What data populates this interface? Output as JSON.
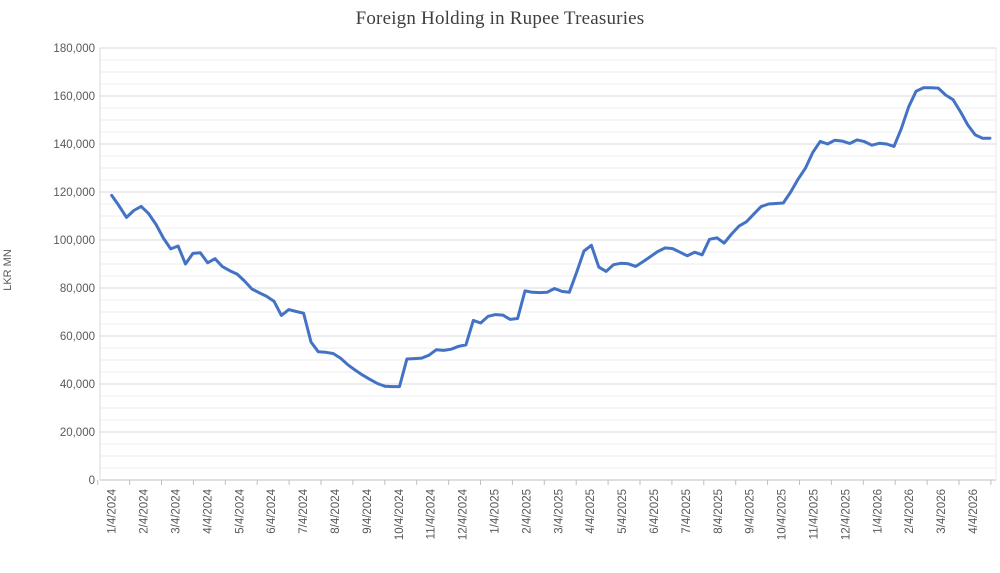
{
  "chart_data": {
    "type": "line",
    "title": "Foreign Holding in Rupee Treasuries",
    "ylabel": "LKR MN",
    "xlabel": "",
    "legend_position": "none",
    "grid": {
      "major_color": "#d9d9d9",
      "minor_color": "#ededed",
      "axis_color": "#bfbfbf",
      "tick_color": "#bfbfbf",
      "label_color": "#595959"
    },
    "y_axis": {
      "min": 0,
      "max": 180000,
      "major_step": 20000,
      "minor_step": 5000,
      "tick_labels": [
        "0",
        "20,000",
        "40,000",
        "60,000",
        "80,000",
        "100,000",
        "120,000",
        "140,000",
        "160,000",
        "180,000"
      ]
    },
    "x_axis": {
      "tick_labels": [
        "1/4/2024",
        "2/4/2024",
        "3/4/2024",
        "4/4/2024",
        "5/4/2024",
        "6/4/2024",
        "7/4/2024",
        "8/4/2024",
        "9/4/2024",
        "10/4/2024",
        "11/4/2024",
        "12/4/2024",
        "1/4/2025",
        "2/4/2025",
        "3/4/2025",
        "4/4/2025",
        "5/4/2025",
        "6/4/2025",
        "7/4/2025",
        "8/4/2025",
        "9/4/2025",
        "10/4/2025",
        "11/4/2025",
        "12/4/2025",
        "1/4/2026",
        "2/4/2026",
        "3/4/2026",
        "4/4/2026"
      ]
    },
    "series": [
      {
        "name": "Foreign Holding in Rupee Treasuries",
        "color": "#4472c4",
        "line_width": 3,
        "x": [
          "1/4/2024",
          "1/11/2024",
          "1/18/2024",
          "1/25/2024",
          "2/1/2024",
          "2/8/2024",
          "2/15/2024",
          "2/22/2024",
          "2/29/2024",
          "3/7/2024",
          "3/14/2024",
          "3/21/2024",
          "3/28/2024",
          "4/4/2024",
          "4/11/2024",
          "4/18/2024",
          "4/25/2024",
          "5/2/2024",
          "5/9/2024",
          "5/16/2024",
          "5/23/2024",
          "5/30/2024",
          "6/6/2024",
          "6/13/2024",
          "6/20/2024",
          "6/27/2024",
          "7/4/2024",
          "7/11/2024",
          "7/18/2024",
          "7/25/2024",
          "8/1/2024",
          "8/8/2024",
          "8/15/2024",
          "8/22/2024",
          "8/29/2024",
          "9/5/2024",
          "9/12/2024",
          "9/19/2024",
          "9/26/2024",
          "10/3/2024",
          "10/10/2024",
          "10/17/2024",
          "10/24/2024",
          "10/31/2024",
          "11/7/2024",
          "11/14/2024",
          "11/21/2024",
          "11/28/2024",
          "12/5/2024",
          "12/12/2024",
          "12/19/2024",
          "12/26/2024",
          "1/2/2025",
          "1/9/2025",
          "1/16/2025",
          "1/23/2025",
          "1/30/2025",
          "2/6/2025",
          "2/13/2025",
          "2/20/2025",
          "2/27/2025",
          "3/6/2025",
          "3/13/2025",
          "3/20/2025",
          "3/27/2025",
          "4/3/2025",
          "4/10/2025",
          "4/17/2025",
          "4/24/2025",
          "5/1/2025",
          "5/8/2025",
          "5/15/2025",
          "5/22/2025",
          "5/29/2025",
          "6/5/2025",
          "6/12/2025",
          "6/19/2025",
          "6/26/2025",
          "7/3/2025",
          "7/10/2025",
          "7/17/2025",
          "7/24/2025",
          "7/31/2025",
          "8/7/2025",
          "8/14/2025",
          "8/21/2025",
          "8/28/2025",
          "9/4/2025",
          "9/11/2025",
          "9/18/2025",
          "9/25/2025",
          "10/2/2025",
          "10/9/2025",
          "10/16/2025",
          "10/23/2025",
          "10/30/2025",
          "11/6/2025",
          "11/13/2025",
          "11/20/2025",
          "11/27/2025",
          "12/4/2025",
          "12/11/2025",
          "12/18/2025",
          "12/25/2025",
          "1/1/2026",
          "1/8/2026",
          "1/15/2026",
          "1/22/2026",
          "1/29/2026",
          "2/5/2026",
          "2/12/2026",
          "2/19/2026",
          "2/26/2026",
          "3/5/2026",
          "3/12/2026",
          "3/19/2026",
          "3/26/2026",
          "4/2/2026",
          "4/9/2026",
          "4/16/2026"
        ],
        "values": [
          118600,
          114200,
          109400,
          112300,
          114000,
          111000,
          106500,
          100800,
          96300,
          97500,
          90000,
          94400,
          94700,
          90500,
          92200,
          88900,
          87200,
          85800,
          82900,
          79600,
          78000,
          76500,
          74400,
          68600,
          71000,
          70200,
          69500,
          57500,
          53400,
          53200,
          52700,
          50800,
          48000,
          45800,
          43700,
          41900,
          40200,
          39100,
          38900,
          38900,
          50400,
          50600,
          50800,
          52000,
          54300,
          54000,
          54500,
          55700,
          56300,
          66500,
          65400,
          68200,
          68900,
          68700,
          66900,
          67300,
          78800,
          78200,
          78100,
          78200,
          79800,
          78600,
          78200,
          86500,
          95400,
          97800,
          88700,
          86900,
          89700,
          90300,
          90100,
          89000,
          91000,
          93100,
          95200,
          96700,
          96400,
          94900,
          93400,
          94900,
          93800,
          100300,
          100900,
          98700,
          102500,
          105800,
          107600,
          110800,
          113900,
          115000,
          115200,
          115400,
          120000,
          125300,
          129900,
          136500,
          141100,
          140000,
          141600,
          141200,
          140200,
          141700,
          141000,
          139500,
          140300,
          140000,
          139000,
          146500,
          155500,
          162000,
          163400,
          163400,
          163300,
          160400,
          158500,
          153500,
          147900,
          143800,
          142400,
          142400
        ]
      }
    ]
  }
}
